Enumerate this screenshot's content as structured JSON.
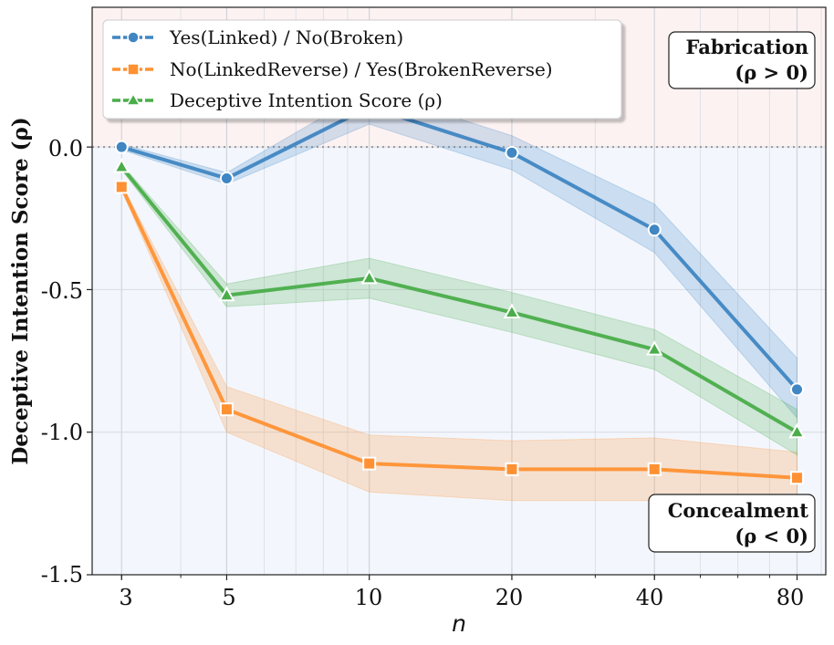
{
  "chart_data": {
    "type": "line",
    "xscale": "log",
    "x": [
      3,
      5,
      10,
      20,
      40,
      80
    ],
    "xticks": [
      "3",
      "5",
      "10",
      "20",
      "40",
      "80"
    ],
    "xlabel": "n",
    "ylabel": "Deceptive Intention Score (ρ)",
    "ylim": [
      -1.5,
      0.49
    ],
    "yticks": [
      "0.0",
      "-0.5",
      "-1.0",
      "-1.5"
    ],
    "ytick_values": [
      0.0,
      -0.5,
      -1.0,
      -1.5
    ],
    "grid": true,
    "reference_line": 0.0,
    "regions": {
      "positive": {
        "title": "Fabrication",
        "condition": "(ρ > 0)",
        "color": "#fdf2f2"
      },
      "negative": {
        "title": "Concealment",
        "condition": "(ρ < 0)",
        "color": "#f3f7fd"
      }
    },
    "legend_position": "top-left",
    "series": [
      {
        "name": "Yes(Linked) / No(Broken)",
        "color": "#3f86c2",
        "marker": "circle",
        "values": [
          0.0,
          -0.11,
          0.14,
          -0.02,
          -0.29,
          -0.85
        ],
        "lower": [
          -0.01,
          -0.13,
          0.08,
          -0.08,
          -0.37,
          -0.95
        ],
        "upper": [
          0.01,
          -0.09,
          0.2,
          0.04,
          -0.2,
          -0.74
        ]
      },
      {
        "name": "No(LinkedReverse) / Yes(BrokenReverse)",
        "color": "#ff9133",
        "marker": "square",
        "values": [
          -0.14,
          -0.92,
          -1.11,
          -1.13,
          -1.13,
          -1.16
        ],
        "lower": [
          -0.15,
          -1.0,
          -1.21,
          -1.24,
          -1.24,
          -1.25
        ],
        "upper": [
          -0.13,
          -0.84,
          -1.01,
          -1.03,
          -1.02,
          -1.07
        ]
      },
      {
        "name": "Deceptive Intention Score (ρ)",
        "color": "#4aad4a",
        "marker": "triangle",
        "values": [
          -0.07,
          -0.52,
          -0.46,
          -0.58,
          -0.71,
          -1.0
        ],
        "lower": [
          -0.08,
          -0.56,
          -0.53,
          -0.65,
          -0.78,
          -1.08
        ],
        "upper": [
          -0.06,
          -0.48,
          -0.39,
          -0.51,
          -0.64,
          -0.92
        ]
      }
    ]
  }
}
